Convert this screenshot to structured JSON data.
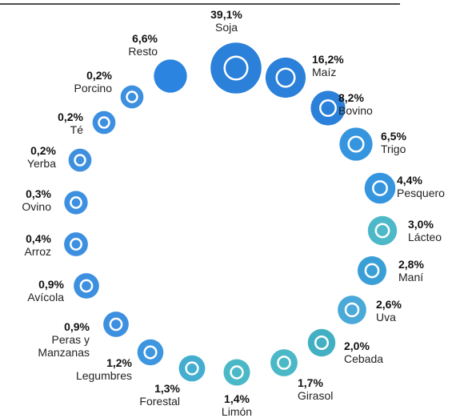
{
  "chart_data": {
    "type": "icon-ring",
    "categories": [
      "Soja",
      "Maíz",
      "Bovino",
      "Trigo",
      "Pesquero",
      "Lácteo",
      "Maní",
      "Uva",
      "Cebada",
      "Girasol",
      "Limón",
      "Forestal",
      "Legumbres",
      "Peras y\nManzanas",
      "Avícola",
      "Arroz",
      "Ovino",
      "Yerba",
      "Té",
      "Porcino",
      "Resto"
    ],
    "values": [
      39.1,
      16.2,
      8.2,
      6.5,
      4.4,
      3.0,
      2.8,
      2.6,
      2.0,
      1.7,
      1.4,
      1.3,
      1.2,
      0.9,
      0.9,
      0.4,
      0.3,
      0.2,
      0.2,
      0.2,
      6.6
    ],
    "value_labels": [
      "39,1%",
      "16,2%",
      "8,2%",
      "6,5%",
      "4,4%",
      "3,0%",
      "2,8%",
      "2,6%",
      "2,0%",
      "1,7%",
      "1,4%",
      "1,3%",
      "1,2%",
      "0,9%",
      "0,9%",
      "0,4%",
      "0,3%",
      "0,2%",
      "0,2%",
      "0,2%",
      "6,6%"
    ],
    "colors": [
      "#2b80d9",
      "#2b80d9",
      "#2b80d9",
      "#3595df",
      "#3595df",
      "#4cb8c8",
      "#3a9fd6",
      "#4aa9d8",
      "#42b0c2",
      "#4ab8c6",
      "#4ab8c6",
      "#43aed0",
      "#3d96e0",
      "#3d8fe0",
      "#3d8fe0",
      "#3d8fe0",
      "#3d8fe0",
      "#3d8fe0",
      "#3d8fe0",
      "#3d8fe0",
      "#2b84e0"
    ]
  }
}
